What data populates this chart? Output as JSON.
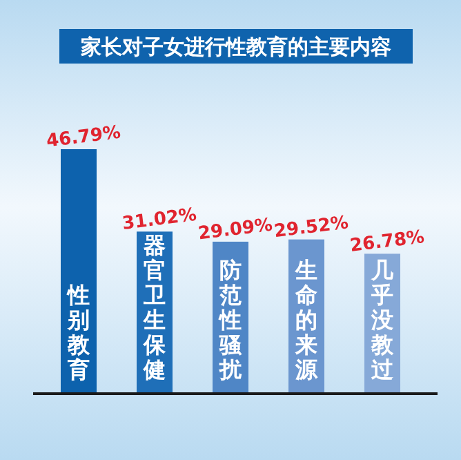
{
  "chart_data": {
    "type": "bar",
    "title": "家长对子女进行性教育的主要内容",
    "categories": [
      "性别教育",
      "器官卫生保健",
      "防范性骚扰",
      "生命的来源",
      "几乎没教过"
    ],
    "values": [
      46.79,
      31.02,
      29.09,
      29.52,
      26.78
    ],
    "value_labels": [
      "46.79%",
      "31.02%",
      "29.09%",
      "29.52%",
      "26.78%"
    ],
    "colors": [
      "#0d62ad",
      "#1f6fb8",
      "#4f86c6",
      "#6b96cf",
      "#86a9d8"
    ]
  }
}
